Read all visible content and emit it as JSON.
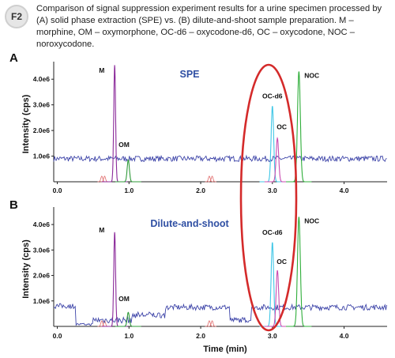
{
  "figure_label": "F2",
  "caption": "Comparison of signal suppression experiment results for a urine specimen processed by (A) solid phase extraction (SPE) vs. (B) dilute-and-shoot sample preparation. M – morphine, OM – oxymorphone, OC-d6 – oxycodone-d6, OC – oxycodone, NOC – noroxycodone.",
  "colors": {
    "baseline": "#3d44a8",
    "M": "#8b2a9a",
    "OM": "#2f9a3a",
    "OC-d6": "#3fc6e6",
    "OC": "#c94bb0",
    "NOC": "#2fae3a",
    "noise_red": "#e06a6a",
    "ellipse": "#d42a2a"
  },
  "chart_data": [
    {
      "type": "line",
      "panel": "A",
      "title": "SPE",
      "xlabel": "",
      "ylabel": "Intensity (cps)",
      "xlim": [
        -0.05,
        4.6
      ],
      "ylim": [
        0,
        4500000.0
      ],
      "xticks": [
        "0.0",
        "1.0",
        "2.0",
        "3.0",
        "4.0"
      ],
      "yticks": [
        "1.0e6",
        "2.0e6",
        "3.0e6",
        "4.0e6"
      ],
      "baseline_level": 900000.0,
      "series": [
        {
          "name": "M",
          "rt": 0.8,
          "height": 4550000.0,
          "width": 0.018
        },
        {
          "name": "OM",
          "rt": 0.99,
          "height": 850000.0,
          "width": 0.022
        },
        {
          "name": "OC-d6",
          "rt": 3.0,
          "height": 2950000.0,
          "width": 0.025
        },
        {
          "name": "OC",
          "rt": 3.07,
          "height": 1700000.0,
          "width": 0.025
        },
        {
          "name": "NOC",
          "rt": 3.37,
          "height": 4300000.0,
          "width": 0.028
        }
      ],
      "labels": [
        {
          "text": "M",
          "x": 0.62,
          "y": 4250000.0
        },
        {
          "text": "OM",
          "x": 0.93,
          "y": 1350000.0
        },
        {
          "text": "OC-d6",
          "x": 3.0,
          "y": 3250000.0
        },
        {
          "text": "OC",
          "x": 3.13,
          "y": 2050000.0
        },
        {
          "text": "NOC",
          "x": 3.55,
          "y": 4050000.0
        }
      ]
    },
    {
      "type": "line",
      "panel": "B",
      "title": "Dilute-and-shoot",
      "xlabel": "Time (min)",
      "ylabel": "Intensity (cps)",
      "xlim": [
        -0.05,
        4.6
      ],
      "ylim": [
        0,
        4500000.0
      ],
      "xticks": [
        "0.0",
        "1.0",
        "2.0",
        "3.0",
        "4.0"
      ],
      "yticks": [
        "1.0e6",
        "2.0e6",
        "3.0e6",
        "4.0e6"
      ],
      "baseline_level": 750000.0,
      "series": [
        {
          "name": "M",
          "rt": 0.8,
          "height": 3700000.0,
          "width": 0.018
        },
        {
          "name": "OM",
          "rt": 0.99,
          "height": 550000.0,
          "width": 0.022
        },
        {
          "name": "OC-d6",
          "rt": 3.0,
          "height": 3300000.0,
          "width": 0.025
        },
        {
          "name": "OC",
          "rt": 3.07,
          "height": 2200000.0,
          "width": 0.025
        },
        {
          "name": "NOC",
          "rt": 3.37,
          "height": 4300000.0,
          "width": 0.028
        }
      ],
      "labels": [
        {
          "text": "M",
          "x": 0.62,
          "y": 3700000.0
        },
        {
          "text": "OM",
          "x": 0.93,
          "y": 1000000.0
        },
        {
          "text": "OC-d6",
          "x": 3.0,
          "y": 3600000.0
        },
        {
          "text": "OC",
          "x": 3.13,
          "y": 2450000.0
        },
        {
          "text": "NOC",
          "x": 3.55,
          "y": 4050000.0
        }
      ]
    }
  ]
}
